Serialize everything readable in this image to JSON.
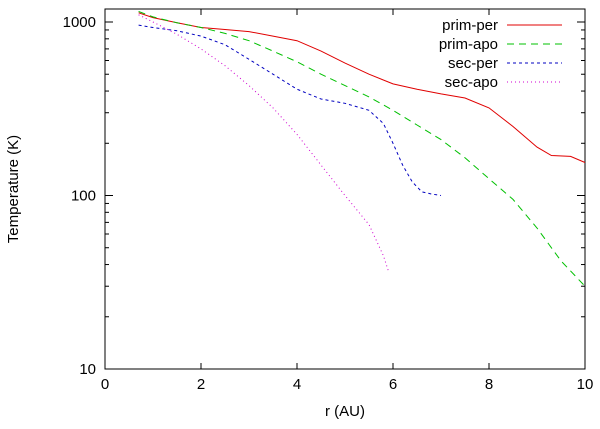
{
  "chart_data": {
    "type": "line",
    "xlabel": "r (AU)",
    "ylabel": "Temperature (K)",
    "xlim": [
      0,
      10
    ],
    "ylim": [
      10,
      1000
    ],
    "yscale": "log",
    "grid": false,
    "legend": "top-right",
    "xticks": [
      0,
      2,
      4,
      6,
      8,
      10
    ],
    "yticks": [
      10,
      100,
      1000
    ],
    "xtick_labels": [
      "0",
      "2",
      "4",
      "6",
      "8",
      "10"
    ],
    "ytick_labels": [
      "10",
      "100",
      "1000"
    ],
    "series": [
      {
        "name": "prim-per",
        "color": "#e00000",
        "dash": "none",
        "x": [
          0.7,
          1.0,
          1.5,
          2.0,
          2.5,
          3.0,
          3.5,
          4.0,
          4.5,
          5.0,
          5.5,
          6.0,
          6.5,
          7.0,
          7.5,
          8.0,
          8.5,
          9.0,
          9.3,
          9.7,
          10.0
        ],
        "y": [
          1130,
          1060,
          990,
          930,
          905,
          880,
          830,
          780,
          680,
          580,
          500,
          440,
          410,
          385,
          365,
          320,
          250,
          190,
          170,
          168,
          155
        ]
      },
      {
        "name": "prim-apo",
        "color": "#00c000",
        "dash": "7,5",
        "x": [
          0.7,
          1.0,
          1.5,
          2.0,
          2.5,
          3.0,
          3.5,
          4.0,
          4.5,
          5.0,
          5.5,
          6.0,
          6.5,
          7.0,
          7.5,
          8.0,
          8.5,
          9.0,
          9.5,
          10.0
        ],
        "y": [
          1150,
          1070,
          990,
          930,
          860,
          780,
          680,
          590,
          500,
          430,
          370,
          310,
          255,
          210,
          165,
          125,
          95,
          65,
          42,
          30
        ]
      },
      {
        "name": "sec-per",
        "color": "#0000c0",
        "dash": "3,3",
        "x": [
          0.7,
          1.0,
          1.5,
          2.0,
          2.5,
          3.0,
          3.5,
          4.0,
          4.5,
          5.0,
          5.5,
          5.8,
          6.0,
          6.2,
          6.4,
          6.6,
          6.8,
          7.0
        ],
        "y": [
          960,
          930,
          890,
          830,
          740,
          610,
          500,
          410,
          360,
          340,
          310,
          260,
          200,
          150,
          120,
          105,
          102,
          100
        ]
      },
      {
        "name": "sec-apo",
        "color": "#d000d0",
        "dash": "1,3",
        "x": [
          0.7,
          1.0,
          1.5,
          2.0,
          2.5,
          3.0,
          3.5,
          4.0,
          4.5,
          5.0,
          5.5,
          5.8,
          5.9
        ],
        "y": [
          1100,
          1000,
          850,
          700,
          560,
          430,
          320,
          225,
          150,
          100,
          68,
          45,
          37
        ]
      }
    ]
  }
}
